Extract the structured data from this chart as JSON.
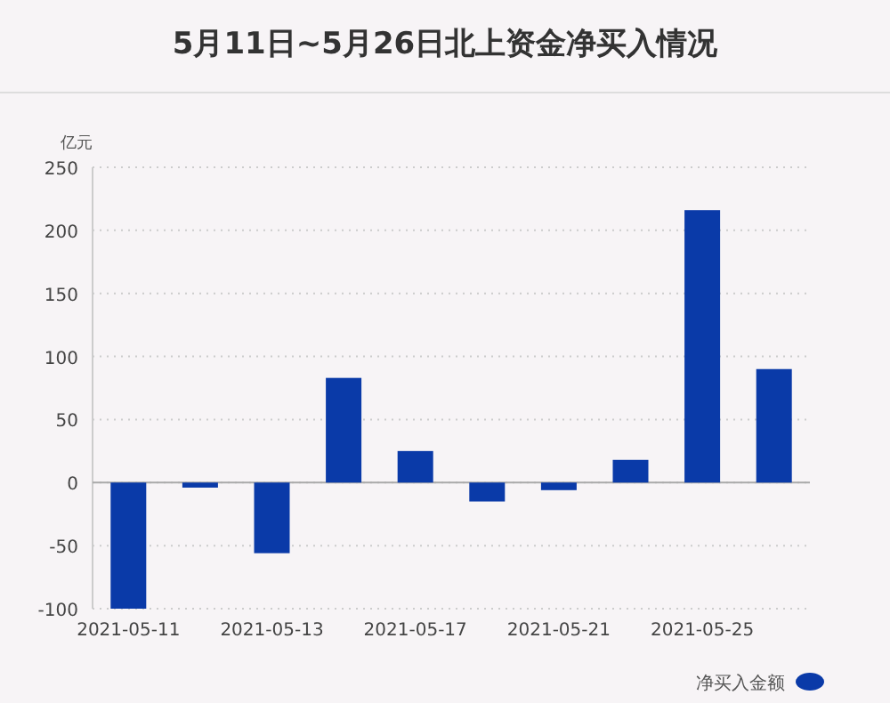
{
  "chart_data": {
    "type": "bar",
    "title": "5月11日~5月26日北上资金净买入情况",
    "ylabel": "亿元",
    "categories": [
      "2021-05-11",
      null,
      "2021-05-13",
      null,
      "2021-05-17",
      null,
      "2021-05-21",
      null,
      "2021-05-25",
      null
    ],
    "series": [
      {
        "name": "净买入金额",
        "color": "#0a3aa8",
        "values": [
          -100,
          -4,
          -56,
          83,
          25,
          -15,
          -6,
          18,
          216,
          90
        ]
      }
    ],
    "ylim": [
      -100,
      250
    ],
    "yticks": [
      -100,
      -50,
      0,
      50,
      100,
      150,
      200,
      250
    ],
    "grid": "y",
    "legend": "bottom right"
  }
}
